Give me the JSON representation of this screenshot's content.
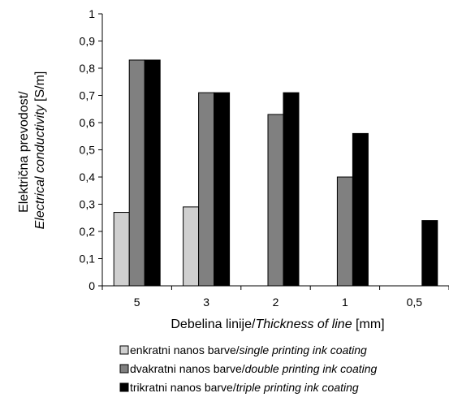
{
  "chart_data": {
    "type": "bar",
    "categories": [
      "5",
      "3",
      "2",
      "1",
      "0,5"
    ],
    "series": [
      {
        "name_plain": "enkratni nanos barve/",
        "name_italic": "single printing ink coating",
        "color": "#cfcfcf",
        "values": [
          0.27,
          0.29,
          null,
          null,
          null
        ]
      },
      {
        "name_plain": "dvakratni nanos barve/",
        "name_italic": "double printing ink coating",
        "color": "#808080",
        "values": [
          0.83,
          0.71,
          0.63,
          0.4,
          null
        ]
      },
      {
        "name_plain": "trikratni nanos barve/",
        "name_italic": "triple printing ink coating",
        "color": "#000000",
        "values": [
          0.83,
          0.71,
          0.71,
          0.56,
          0.24
        ]
      }
    ],
    "xlabel": {
      "plain": "Debelina linije/",
      "italic": "Thickness of line",
      "unit": " [mm]"
    },
    "ylabel": {
      "line1": "Električna prevodost/",
      "line2_italic": "Electrical conductivity",
      "line2_unit": " [S/m]"
    },
    "ylim": [
      0,
      1
    ],
    "yticks": [
      "0",
      "0,1",
      "0,2",
      "0,3",
      "0,4",
      "0,5",
      "0,6",
      "0,7",
      "0,8",
      "0,9",
      "1"
    ],
    "legend_position": "bottom",
    "grid": false
  }
}
